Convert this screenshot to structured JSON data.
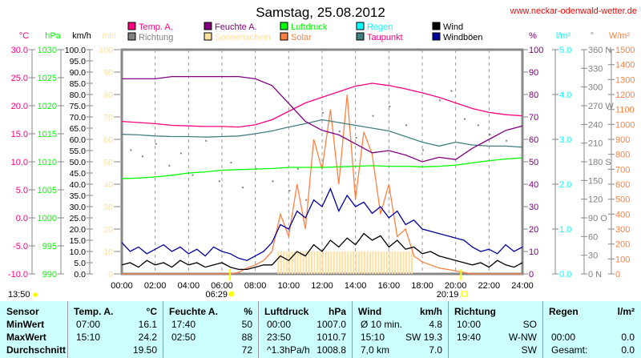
{
  "header": {
    "title": "Samstag, 25.08.2012",
    "url": "www.neckar-odenwald-wetter.de"
  },
  "chart_data": {
    "type": "line",
    "title": "Samstag, 25.08.2012",
    "legend": [
      {
        "name": "Temp. A.",
        "color": "#ff0080"
      },
      {
        "name": "Feuchte A.",
        "color": "#800080"
      },
      {
        "name": "Luftdruck",
        "color": "#00ff00"
      },
      {
        "name": "Regen",
        "color": "#00ffff"
      },
      {
        "name": "Wind",
        "color": "#000000"
      },
      {
        "name": "Richtung",
        "color": "#808080"
      },
      {
        "name": "Sonnenschein",
        "color": "#ffe0a0"
      },
      {
        "name": "Solar",
        "color": "#ff8040"
      },
      {
        "name": "Taupunkt",
        "color": "#408080"
      },
      {
        "name": "Windböen",
        "color": "#0000a0"
      }
    ],
    "legend_text_colors": [
      "#ff0080",
      "#800080",
      "#00ff00",
      "#00ffff",
      "#000000",
      "#808080",
      "#ffe0a0",
      "#ff8040",
      "#ff0080",
      "#000000"
    ],
    "axes_left": [
      {
        "unit": "°C",
        "color": "#ff0080",
        "min": -10,
        "max": 30,
        "ticks": [
          "30.0",
          "25.0",
          "20.0",
          "15.0",
          "10.0",
          "5.0",
          "0.0",
          "-5.0",
          "-10.0"
        ]
      },
      {
        "unit": "hPa",
        "color": "#00ff00",
        "min": 990,
        "max": 1030,
        "ticks": [
          "1030",
          "1025",
          "1020",
          "1015",
          "1010",
          "1005",
          "1000",
          "995",
          "990"
        ]
      },
      {
        "unit": "km/h",
        "color": "#000000",
        "min": 0,
        "max": 100,
        "ticks": [
          "100.0",
          "95.0",
          "90.0",
          "85.0",
          "80.0",
          "75.0",
          "70.0",
          "65.0",
          "60.0",
          "55.0",
          "50.0",
          "45.0",
          "40.0",
          "35.0",
          "30.0",
          "25.0",
          "20.0",
          "15.0",
          "10.0",
          "5.0",
          "0.0"
        ]
      },
      {
        "unit": "min",
        "color": "#ffe0a0",
        "min": 0,
        "max": 100,
        "ticks": [
          "100",
          "90",
          "80",
          "70",
          "60",
          "50",
          "40",
          "30",
          "20",
          "10",
          "0"
        ]
      }
    ],
    "axes_right": [
      {
        "unit": "%",
        "color": "#800080",
        "min": 0,
        "max": 100,
        "ticks": [
          "100",
          "90",
          "80",
          "70",
          "60",
          "50",
          "40",
          "30",
          "20",
          "10",
          "0"
        ]
      },
      {
        "unit": "l/m²",
        "color": "#00ffff",
        "min": 0,
        "max": 5,
        "ticks": [
          "5.0",
          "4.0",
          "3.0",
          "2.0",
          "1.0",
          "0.0"
        ]
      },
      {
        "unit": "°",
        "color": "#808080",
        "min": 0,
        "max": 360,
        "ticks": [
          "360 N",
          "330",
          "300",
          "270 W",
          "240",
          "210",
          "180 S",
          "150",
          "120",
          "90  O",
          "60",
          "30",
          "0    N"
        ]
      },
      {
        "unit": "W/m²",
        "color": "#ff8040",
        "min": 0,
        "max": 1500,
        "ticks": [
          "1500",
          "1400",
          "1300",
          "1200",
          "1100",
          "1000",
          "900",
          "800",
          "700",
          "600",
          "500",
          "400",
          "300",
          "200",
          "100",
          "0"
        ]
      }
    ],
    "x_ticks": [
      "00:00",
      "02:00",
      "04:00",
      "06:00",
      "08:00",
      "10:00",
      "12:00",
      "14:00",
      "16:00",
      "18:00",
      "20:00",
      "22:00",
      "24:00"
    ],
    "x_range_hours": [
      0,
      24
    ],
    "now_label": "13:50",
    "sunrise": "06:29",
    "sunset": "20:19",
    "sunrise_h": 6.48,
    "sunset_h": 20.32,
    "hourly_x": [
      0,
      1,
      2,
      3,
      4,
      5,
      6,
      7,
      8,
      9,
      10,
      11,
      12,
      13,
      14,
      15,
      16,
      17,
      18,
      19,
      20,
      21,
      22,
      23,
      24
    ],
    "series": [
      {
        "name": "Taupunkt",
        "axis": "°C",
        "color": "#408080",
        "values": [
          14.9,
          14.8,
          14.6,
          14.5,
          14.5,
          14.4,
          14.5,
          14.6,
          15,
          15.5,
          16.2,
          16.8,
          17.5,
          17.0,
          16.5,
          16.0,
          15.5,
          14.5,
          13.5,
          12.8,
          13.5,
          13.0,
          12.8,
          12.8,
          12.6
        ]
      },
      {
        "name": "Luftdruck",
        "axis": "hPa",
        "color": "#00ff00",
        "values": [
          1007.0,
          1007.1,
          1007.3,
          1007.6,
          1008,
          1008.2,
          1008.5,
          1008.6,
          1008.7,
          1008.8,
          1009.0,
          1009.0,
          1009.0,
          1009.1,
          1009.2,
          1009.3,
          1009.2,
          1009.2,
          1009.1,
          1009.2,
          1009.4,
          1009.8,
          1010.2,
          1010.5,
          1010.7
        ]
      },
      {
        "name": "Temp. A.",
        "axis": "°C",
        "color": "#ff0080",
        "values": [
          17.2,
          17.0,
          16.8,
          16.5,
          16.4,
          16.3,
          16.3,
          16.2,
          16.6,
          17.5,
          19.0,
          20.5,
          21.5,
          22.5,
          23.5,
          24.0,
          23.6,
          23.0,
          22.3,
          21.5,
          20.5,
          19.5,
          18.8,
          18.4,
          18.2
        ]
      },
      {
        "name": "Feuchte A.",
        "axis": "%",
        "color": "#800080",
        "values": [
          87,
          87,
          87,
          88,
          88,
          88,
          88,
          88,
          87,
          84,
          76,
          68,
          64,
          62,
          58,
          54,
          55,
          53,
          50,
          52,
          51,
          56,
          60,
          64,
          66
        ]
      }
    ],
    "halfhourly_series": [
      {
        "name": "Solar",
        "axis": "W/m²",
        "color": "#ff8040",
        "values": [
          0,
          0,
          0,
          0,
          0,
          0,
          0,
          0,
          0,
          0,
          0,
          0,
          0,
          0,
          10,
          40,
          60,
          90,
          150,
          400,
          250,
          600,
          300,
          900,
          700,
          1100,
          600,
          1200,
          500,
          950,
          800,
          400,
          600,
          250,
          300,
          120,
          80,
          60,
          40,
          30,
          20,
          10,
          0,
          0,
          0,
          0,
          0,
          0,
          0
        ]
      },
      {
        "name": "Windböen",
        "axis": "km/h",
        "color": "#0000a0",
        "values": [
          14,
          10,
          12,
          9,
          11,
          13,
          10,
          12,
          9,
          11,
          8,
          12,
          10,
          9,
          7,
          6,
          8,
          10,
          14,
          22,
          20,
          28,
          25,
          33,
          30,
          38,
          28,
          35,
          30,
          32,
          27,
          30,
          25,
          28,
          22,
          24,
          20,
          19,
          18,
          17,
          16,
          15,
          12,
          10,
          11,
          9,
          13,
          10,
          12
        ]
      },
      {
        "name": "Wind",
        "axis": "km/h",
        "color": "#000000",
        "values": [
          4,
          5,
          3,
          6,
          4,
          5,
          3,
          6,
          4,
          5,
          3,
          4,
          5,
          3,
          2,
          2,
          3,
          4,
          4,
          8,
          6,
          10,
          8,
          13,
          10,
          15,
          12,
          16,
          13,
          18,
          15,
          17,
          12,
          15,
          11,
          12,
          9,
          10,
          8,
          7,
          6,
          5,
          4,
          5,
          3,
          6,
          4,
          3,
          5
        ]
      }
    ],
    "sunshine": {
      "axis": "min",
      "start_h": 9.33,
      "end_h": 17.33,
      "step_min": 10,
      "value": 10
    },
    "direction": {
      "axis": "°",
      "x": [
        0.5,
        1.2,
        2,
        2.8,
        3.5,
        4.2,
        5,
        5.8,
        6.5,
        7.2,
        8,
        9,
        10,
        10.5,
        11,
        12,
        13,
        14,
        15,
        16,
        17,
        18,
        19,
        19.7,
        20.5,
        21.3,
        22,
        23
      ],
      "values": [
        200,
        190,
        210,
        175,
        195,
        160,
        215,
        150,
        180,
        140,
        170,
        150,
        135,
        170,
        120,
        260,
        230,
        220,
        255,
        270,
        240,
        200,
        280,
        295,
        250,
        240,
        225,
        215
      ]
    }
  },
  "table": {
    "headers": [
      "Sensor",
      "Temp. A.",
      "°C",
      "Feuchte A.",
      "%",
      "Luftdruck",
      "hPa",
      "Wind",
      "km/h",
      "Richtung",
      "Regen",
      "l/m²"
    ],
    "row_labels": [
      "MinWert",
      "MaxWert",
      "Durchschnitt"
    ],
    "temp": [
      [
        "07:00",
        "16.1"
      ],
      [
        "15:10",
        "24.2"
      ],
      [
        "",
        "19.50"
      ]
    ],
    "hum": [
      [
        "17:40",
        "50"
      ],
      [
        "02:50",
        "88"
      ],
      [
        "",
        "72"
      ]
    ],
    "press": [
      [
        "00:00",
        "1007.0"
      ],
      [
        "23:50",
        "1010.7"
      ],
      [
        "^1.3hPa/h",
        "1008.8"
      ]
    ],
    "wind": [
      [
        "Ø 10 min.",
        "4.8"
      ],
      [
        "15:10",
        "SW 19.3"
      ],
      [
        "7,0 km",
        "7.0"
      ]
    ],
    "dir": [
      [
        "10:00",
        "SO"
      ],
      [
        "19:40",
        "W-NW"
      ],
      [
        "",
        "SW"
      ]
    ],
    "rain": [
      [
        "",
        ""
      ],
      [
        "00:00",
        "0.0"
      ],
      [
        "Gesamt:",
        "0.0"
      ]
    ]
  }
}
